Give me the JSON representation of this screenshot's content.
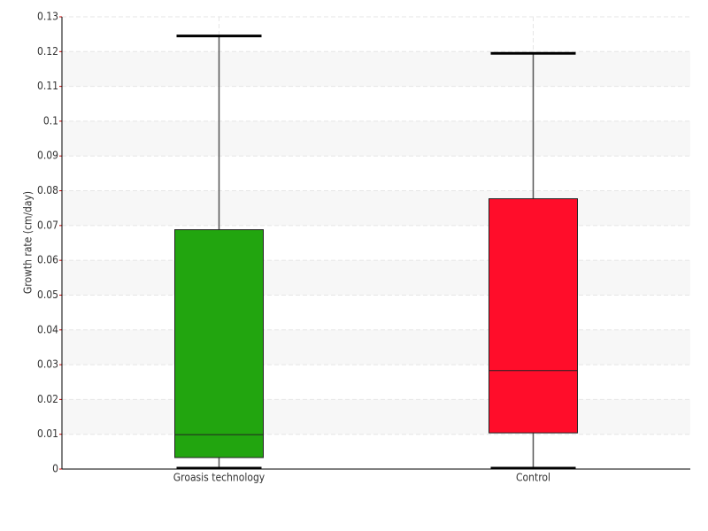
{
  "chart_data": {
    "type": "box",
    "y_label": "Growth rate (cm/day)",
    "categories": [
      "Groasis technology",
      "Control"
    ],
    "colors": [
      "#22a50f",
      "#ff0d2a"
    ],
    "boxes": [
      {
        "min": 0,
        "q1": 0.0033,
        "median": 0.0099,
        "q3": 0.0688,
        "max": 0.1245
      },
      {
        "min": 0,
        "q1": 0.0104,
        "median": 0.0283,
        "q3": 0.0777,
        "max": 0.1195
      }
    ],
    "ylim": [
      0,
      0.13
    ],
    "yticks": [
      0,
      0.01,
      0.02,
      0.03,
      0.04,
      0.05,
      0.06,
      0.07,
      0.08,
      0.09,
      0.1,
      0.11,
      0.12,
      0.13
    ],
    "grid": true
  }
}
